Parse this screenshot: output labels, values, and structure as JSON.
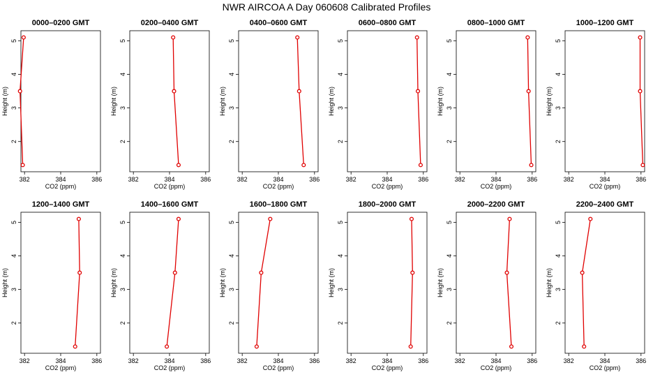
{
  "title": "NWR AIRCOA A  Day 060608  Calibrated Profiles",
  "chart_data": [
    {
      "type": "line",
      "title": "0000–0200 GMT",
      "xlabel": "CO2 (ppm)",
      "ylabel": "Height (m)",
      "xlim": [
        381.8,
        386.2
      ],
      "ylim": [
        1.1,
        5.3
      ],
      "x_ticks": [
        382,
        384,
        386
      ],
      "y_ticks": [
        2,
        3,
        4,
        5
      ],
      "points": [
        {
          "x": 381.95,
          "y": 5.1
        },
        {
          "x": 381.75,
          "y": 3.5
        },
        {
          "x": 381.9,
          "y": 1.3
        }
      ]
    },
    {
      "type": "line",
      "title": "0200–0400 GMT",
      "xlabel": "CO2 (ppm)",
      "ylabel": "Height (m)",
      "xlim": [
        381.8,
        386.2
      ],
      "ylim": [
        1.1,
        5.3
      ],
      "x_ticks": [
        382,
        384,
        386
      ],
      "y_ticks": [
        2,
        3,
        4,
        5
      ],
      "points": [
        {
          "x": 384.2,
          "y": 5.1
        },
        {
          "x": 384.25,
          "y": 3.5
        },
        {
          "x": 384.5,
          "y": 1.3
        }
      ]
    },
    {
      "type": "line",
      "title": "0400–0600 GMT",
      "xlabel": "CO2 (ppm)",
      "ylabel": "Height (m)",
      "xlim": [
        381.8,
        386.2
      ],
      "ylim": [
        1.1,
        5.3
      ],
      "x_ticks": [
        382,
        384,
        386
      ],
      "y_ticks": [
        2,
        3,
        4,
        5
      ],
      "points": [
        {
          "x": 385.05,
          "y": 5.1
        },
        {
          "x": 385.15,
          "y": 3.5
        },
        {
          "x": 385.4,
          "y": 1.3
        }
      ]
    },
    {
      "type": "line",
      "title": "0600–0800 GMT",
      "xlabel": "CO2 (ppm)",
      "ylabel": "Height (m)",
      "xlim": [
        381.8,
        386.2
      ],
      "ylim": [
        1.1,
        5.3
      ],
      "x_ticks": [
        382,
        384,
        386
      ],
      "y_ticks": [
        2,
        3,
        4,
        5
      ],
      "points": [
        {
          "x": 385.65,
          "y": 5.1
        },
        {
          "x": 385.7,
          "y": 3.5
        },
        {
          "x": 385.85,
          "y": 1.3
        }
      ]
    },
    {
      "type": "line",
      "title": "0800–1000 GMT",
      "xlabel": "CO2 (ppm)",
      "ylabel": "Height (m)",
      "xlim": [
        381.8,
        386.2
      ],
      "ylim": [
        1.1,
        5.3
      ],
      "x_ticks": [
        382,
        384,
        386
      ],
      "y_ticks": [
        2,
        3,
        4,
        5
      ],
      "points": [
        {
          "x": 385.75,
          "y": 5.1
        },
        {
          "x": 385.8,
          "y": 3.5
        },
        {
          "x": 385.95,
          "y": 1.3
        }
      ]
    },
    {
      "type": "line",
      "title": "1000–1200 GMT",
      "xlabel": "CO2 (ppm)",
      "ylabel": "Height (m)",
      "xlim": [
        381.8,
        386.2
      ],
      "ylim": [
        1.1,
        5.3
      ],
      "x_ticks": [
        382,
        384,
        386
      ],
      "y_ticks": [
        2,
        3,
        4,
        5
      ],
      "points": [
        {
          "x": 385.95,
          "y": 5.1
        },
        {
          "x": 385.95,
          "y": 3.5
        },
        {
          "x": 386.1,
          "y": 1.3
        }
      ]
    },
    {
      "type": "line",
      "title": "1200–1400 GMT",
      "xlabel": "CO2 (ppm)",
      "ylabel": "Height (m)",
      "xlim": [
        381.8,
        386.2
      ],
      "ylim": [
        1.1,
        5.3
      ],
      "x_ticks": [
        382,
        384,
        386
      ],
      "y_ticks": [
        2,
        3,
        4,
        5
      ],
      "points": [
        {
          "x": 385.0,
          "y": 5.1
        },
        {
          "x": 385.05,
          "y": 3.5
        },
        {
          "x": 384.8,
          "y": 1.3
        }
      ]
    },
    {
      "type": "line",
      "title": "1400–1600 GMT",
      "xlabel": "CO2 (ppm)",
      "ylabel": "Height (m)",
      "xlim": [
        381.8,
        386.2
      ],
      "ylim": [
        1.1,
        5.3
      ],
      "x_ticks": [
        382,
        384,
        386
      ],
      "y_ticks": [
        2,
        3,
        4,
        5
      ],
      "points": [
        {
          "x": 384.5,
          "y": 5.1
        },
        {
          "x": 384.3,
          "y": 3.5
        },
        {
          "x": 383.85,
          "y": 1.3
        }
      ]
    },
    {
      "type": "line",
      "title": "1600–1800 GMT",
      "xlabel": "CO2 (ppm)",
      "ylabel": "Height (m)",
      "xlim": [
        381.8,
        386.2
      ],
      "ylim": [
        1.1,
        5.3
      ],
      "x_ticks": [
        382,
        384,
        386
      ],
      "y_ticks": [
        2,
        3,
        4,
        5
      ],
      "points": [
        {
          "x": 383.55,
          "y": 5.1
        },
        {
          "x": 383.05,
          "y": 3.5
        },
        {
          "x": 382.8,
          "y": 1.3
        }
      ]
    },
    {
      "type": "line",
      "title": "1800–2000 GMT",
      "xlabel": "CO2 (ppm)",
      "ylabel": "Height (m)",
      "xlim": [
        381.8,
        386.2
      ],
      "ylim": [
        1.1,
        5.3
      ],
      "x_ticks": [
        382,
        384,
        386
      ],
      "y_ticks": [
        2,
        3,
        4,
        5
      ],
      "points": [
        {
          "x": 385.35,
          "y": 5.1
        },
        {
          "x": 385.4,
          "y": 3.5
        },
        {
          "x": 385.3,
          "y": 1.3
        }
      ]
    },
    {
      "type": "line",
      "title": "2000–2200 GMT",
      "xlabel": "CO2 (ppm)",
      "ylabel": "Height (m)",
      "xlim": [
        381.8,
        386.2
      ],
      "ylim": [
        1.1,
        5.3
      ],
      "x_ticks": [
        382,
        384,
        386
      ],
      "y_ticks": [
        2,
        3,
        4,
        5
      ],
      "points": [
        {
          "x": 384.75,
          "y": 5.1
        },
        {
          "x": 384.6,
          "y": 3.5
        },
        {
          "x": 384.85,
          "y": 1.3
        }
      ]
    },
    {
      "type": "line",
      "title": "2200–2400 GMT",
      "xlabel": "CO2 (ppm)",
      "ylabel": "Height (m)",
      "xlim": [
        381.8,
        386.2
      ],
      "ylim": [
        1.1,
        5.3
      ],
      "x_ticks": [
        382,
        384,
        386
      ],
      "y_ticks": [
        2,
        3,
        4,
        5
      ],
      "points": [
        {
          "x": 383.2,
          "y": 5.1
        },
        {
          "x": 382.75,
          "y": 3.5
        },
        {
          "x": 382.85,
          "y": 1.3
        }
      ]
    }
  ]
}
